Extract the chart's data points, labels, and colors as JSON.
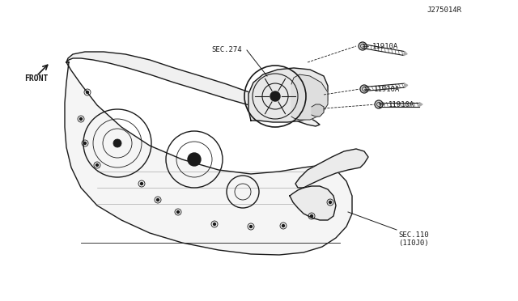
{
  "title": "",
  "background_color": "#ffffff",
  "line_color": "#1a1a1a",
  "label_color": "#1a1a1a",
  "labels": {
    "sec110": "SEC.110\n(1I0J0)",
    "sec274": "SEC.274",
    "11910A_1": "11910A",
    "11910A_2": "11910A",
    "11910A_3": "11910A",
    "front": "FRONT",
    "part_num": "J275014R"
  },
  "font_size": 6.5,
  "part_font_size": 6.0,
  "fig_width": 6.4,
  "fig_height": 3.72,
  "dpi": 100
}
